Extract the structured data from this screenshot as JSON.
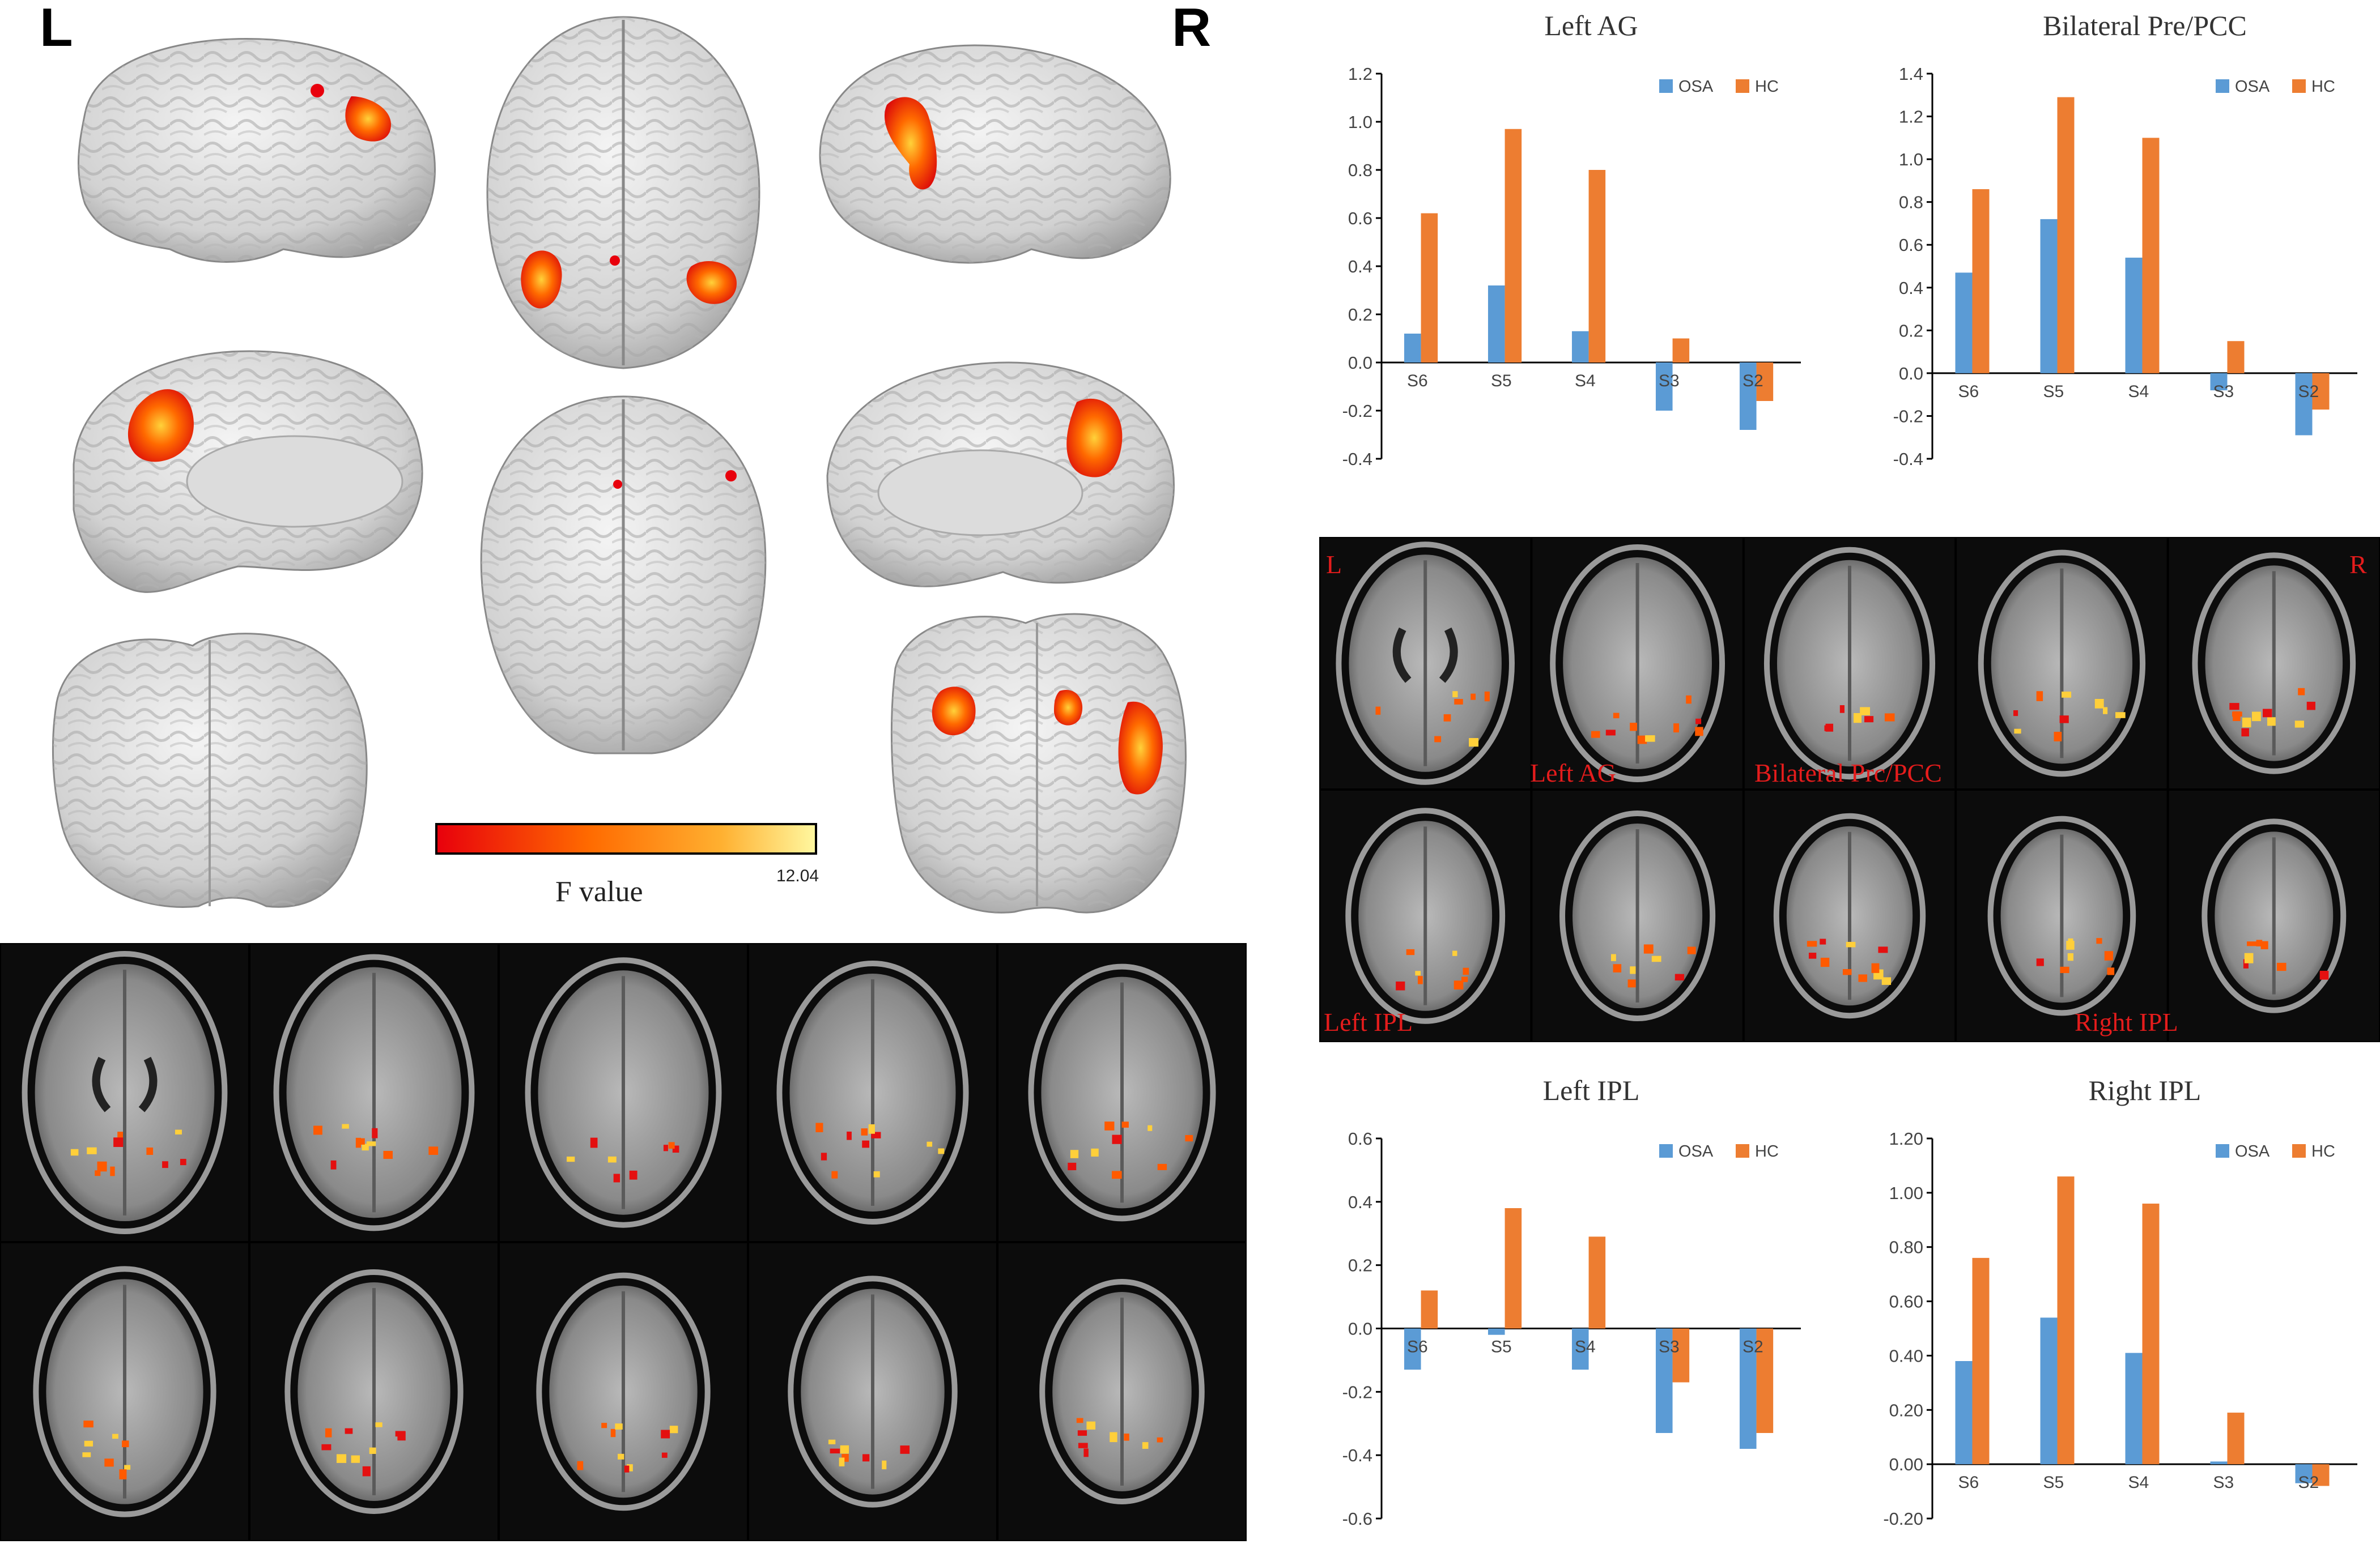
{
  "hemisphere_labels": {
    "left": "L",
    "right": "R"
  },
  "colorbar": {
    "label": "F value",
    "max_label": "12.04",
    "colors": [
      "#e8000c",
      "#ff6a00",
      "#ffb030",
      "#fff8a0"
    ]
  },
  "slice_panel_right": {
    "corner_left": "L",
    "corner_right": "R",
    "region_labels": [
      "Left AG",
      "Bilateral Prc/PCC",
      "Left  IPL",
      "Right IPL"
    ]
  },
  "colors": {
    "OSA": "#5b9bd5",
    "HC": "#ed7d31",
    "slice_label": "#e41c1c"
  },
  "chart_data": [
    {
      "type": "bar",
      "title": "Left AG",
      "categories": [
        "S6",
        "S5",
        "S4",
        "S3",
        "S2"
      ],
      "series": [
        {
          "name": "OSA",
          "values": [
            0.12,
            0.32,
            0.13,
            -0.2,
            -0.28
          ]
        },
        {
          "name": "HC",
          "values": [
            0.62,
            0.97,
            0.8,
            0.1,
            -0.16
          ]
        }
      ],
      "ylim": [
        -0.4,
        1.2
      ],
      "yticks": [
        "1.2",
        "1.0",
        "0.8",
        "0.6",
        "0.4",
        "0.2",
        "0.0",
        "-0.2",
        "-0.4"
      ],
      "ytick_values": [
        1.2,
        1.0,
        0.8,
        0.6,
        0.4,
        0.2,
        0.0,
        -0.2,
        -0.4
      ],
      "legend": "top-right"
    },
    {
      "type": "bar",
      "title": "Bilateral Pre/PCC",
      "categories": [
        "S6",
        "S5",
        "S4",
        "S3",
        "S2"
      ],
      "series": [
        {
          "name": "OSA",
          "values": [
            0.47,
            0.72,
            0.54,
            -0.08,
            -0.29
          ]
        },
        {
          "name": "HC",
          "values": [
            0.86,
            1.29,
            1.1,
            0.15,
            -0.17
          ]
        }
      ],
      "ylim": [
        -0.4,
        1.4
      ],
      "yticks": [
        "1.4",
        "1.2",
        "1.0",
        "0.8",
        "0.6",
        "0.4",
        "0.2",
        "0.0",
        "-0.2",
        "-0.4"
      ],
      "ytick_values": [
        1.4,
        1.2,
        1.0,
        0.8,
        0.6,
        0.4,
        0.2,
        0.0,
        -0.2,
        -0.4
      ],
      "legend": "top-right"
    },
    {
      "type": "bar",
      "title": "Left IPL",
      "categories": [
        "S6",
        "S5",
        "S4",
        "S3",
        "S2"
      ],
      "series": [
        {
          "name": "OSA",
          "values": [
            -0.13,
            -0.02,
            -0.13,
            -0.33,
            -0.38
          ]
        },
        {
          "name": "HC",
          "values": [
            0.12,
            0.38,
            0.29,
            -0.17,
            -0.33
          ]
        }
      ],
      "ylim": [
        -0.6,
        0.6
      ],
      "yticks": [
        "0.6",
        "0.4",
        "0.2",
        "0.0",
        "-0.2",
        "-0.4",
        "-0.6"
      ],
      "ytick_values": [
        0.6,
        0.4,
        0.2,
        0.0,
        -0.2,
        -0.4,
        -0.6
      ],
      "legend": "top-right"
    },
    {
      "type": "bar",
      "title": "Right IPL",
      "categories": [
        "S6",
        "S5",
        "S4",
        "S3",
        "S2"
      ],
      "series": [
        {
          "name": "OSA",
          "values": [
            0.38,
            0.54,
            0.41,
            0.01,
            -0.07
          ]
        },
        {
          "name": "HC",
          "values": [
            0.76,
            1.06,
            0.96,
            0.19,
            -0.08
          ]
        }
      ],
      "ylim": [
        -0.2,
        1.2
      ],
      "yticks": [
        "1.20",
        "1.00",
        "0.80",
        "0.60",
        "0.40",
        "0.20",
        "0.00",
        "-0.20"
      ],
      "ytick_values": [
        1.2,
        1.0,
        0.8,
        0.6,
        0.4,
        0.2,
        0.0,
        -0.2
      ],
      "legend": "top-right"
    }
  ]
}
